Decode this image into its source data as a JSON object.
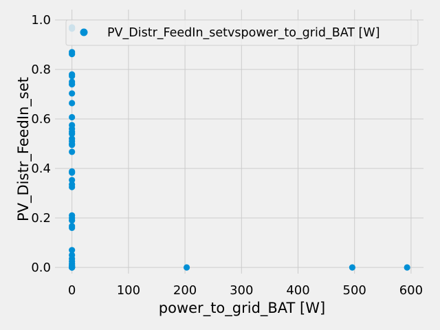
{
  "chart_data": {
    "type": "scatter",
    "title": "",
    "xlabel": "power_to_grid_BAT [W]",
    "ylabel": "PV_Distr_FeedIn_set",
    "xlim": [
      -30,
      622
    ],
    "ylim": [
      -0.025,
      1.0
    ],
    "xticks": [
      0,
      100,
      200,
      300,
      400,
      500,
      600
    ],
    "xtick_labels": [
      "0",
      "100",
      "200",
      "300",
      "400",
      "500",
      "600"
    ],
    "yticks": [
      0.0,
      0.2,
      0.4,
      0.6,
      0.8,
      1.0
    ],
    "ytick_labels": [
      "0.0",
      "0.2",
      "0.4",
      "0.6",
      "0.8",
      "1.0"
    ],
    "grid": true,
    "legend_position": "top-right",
    "series": [
      {
        "name": "PV_Distr_FeedIn_setvspower_to_grid_BAT [W]",
        "color": "#008fd5",
        "x": [
          0,
          0,
          0,
          0,
          0,
          0,
          0,
          0,
          0,
          0,
          0,
          0,
          0,
          0,
          0,
          0,
          0,
          0,
          0,
          0,
          0,
          0,
          0,
          0,
          0,
          0,
          0,
          0,
          0,
          0,
          0,
          0,
          0,
          0,
          0,
          0,
          0,
          0,
          0,
          0,
          0,
          0,
          0,
          0,
          203,
          496,
          593
        ],
        "y": [
          0.97,
          0.965,
          0.87,
          0.862,
          0.78,
          0.773,
          0.75,
          0.74,
          0.703,
          0.664,
          0.607,
          0.575,
          0.56,
          0.548,
          0.54,
          0.52,
          0.51,
          0.5,
          0.495,
          0.467,
          0.388,
          0.383,
          0.353,
          0.335,
          0.325,
          0.21,
          0.2,
          0.19,
          0.167,
          0.16,
          0.07,
          0.05,
          0.035,
          0.025,
          0.015,
          0.008,
          0.004,
          0.002,
          0.0,
          0.0,
          0.0,
          0.0,
          0.0,
          0.0,
          0.0,
          0.0,
          0.0
        ]
      }
    ]
  }
}
